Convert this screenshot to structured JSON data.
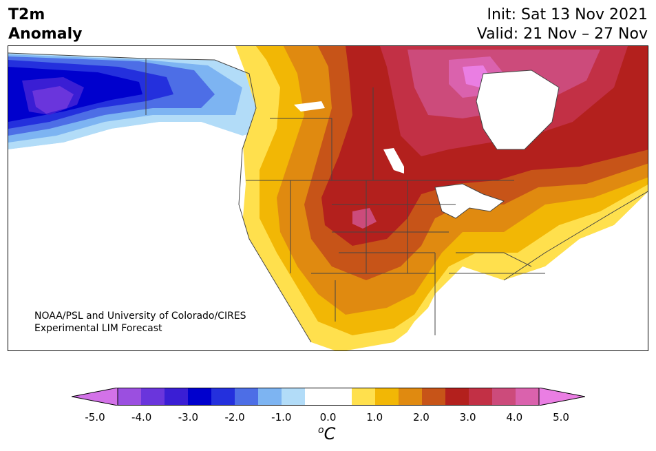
{
  "header": {
    "title_line1": "T2m",
    "title_line2": "Anomaly",
    "init": "Init: Sat 13 Nov 2021",
    "valid": "Valid: 21 Nov – 27 Nov"
  },
  "map": {
    "credit_line1": "NOAA/PSL and University of Colorado/CIRES",
    "credit_line2": "Experimental LIM Forecast"
  },
  "colorbar": {
    "colors": [
      "#d372e8",
      "#9b4fe0",
      "#6a35dc",
      "#3a1ed4",
      "#0000cd",
      "#2430dd",
      "#4d6ee6",
      "#7db4f2",
      "#b2dcf8",
      "#ffffff",
      "#ffffff",
      "#ffe04d",
      "#f2b705",
      "#e08a10",
      "#c75418",
      "#b3201d",
      "#c23045",
      "#cc4b7b",
      "#da62ad",
      "#ea7ee3"
    ],
    "ticks": [
      "-5.0",
      "-4.0",
      "-3.0",
      "-2.0",
      "-1.0",
      "0.0",
      "1.0",
      "2.0",
      "3.0",
      "4.0",
      "5.0"
    ],
    "unit_base": "C",
    "unit_sup": "o"
  }
}
